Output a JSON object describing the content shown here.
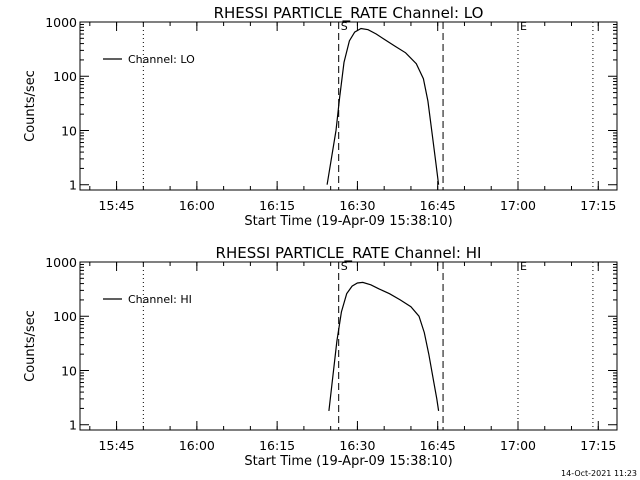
{
  "footer_timestamp": "14-Oct-2021 11:23",
  "chart_data": [
    {
      "type": "line",
      "title": "RHESSI PARTICLE_RATE Channel: LO",
      "xlabel": "Start Time (19-Apr-09 15:38:10)",
      "ylabel": "Counts/sec",
      "yscale": "log",
      "ylim": [
        0.8,
        1000
      ],
      "xlim": [
        "15:38:10",
        "17:18:30"
      ],
      "x_ticks": [
        "15:45",
        "16:00",
        "16:15",
        "16:30",
        "16:45",
        "17:00",
        "17:15"
      ],
      "y_ticks": [
        "1",
        "10",
        "100",
        "1000"
      ],
      "legend": "top-left",
      "grid": false,
      "markers": [
        {
          "label": "",
          "x": "15:50:00",
          "style": "dotted"
        },
        {
          "label": "S",
          "x": "16:26:30",
          "style": "dashed"
        },
        {
          "label": "",
          "x": "16:46:00",
          "style": "dashed"
        },
        {
          "label": "E",
          "x": "17:00:00",
          "style": "dotted"
        },
        {
          "label": "",
          "x": "17:14:00",
          "style": "dotted"
        }
      ],
      "series": [
        {
          "name": "Channel: LO",
          "x": [
            "16:24:20",
            "16:26:00",
            "16:26:40",
            "16:27:30",
            "16:28:30",
            "16:29:30",
            "16:30:40",
            "16:32:00",
            "16:33:30",
            "16:35:00",
            "16:37:00",
            "16:39:00",
            "16:41:00",
            "16:42:20",
            "16:43:10",
            "16:44:00",
            "16:44:40",
            "16:45:10"
          ],
          "values": [
            1.0,
            10,
            40,
            180,
            450,
            650,
            760,
            720,
            600,
            480,
            360,
            270,
            170,
            90,
            35,
            8,
            2.5,
            1.0
          ]
        }
      ]
    },
    {
      "type": "line",
      "title": "RHESSI PARTICLE_RATE Channel: HI",
      "xlabel": "Start Time (19-Apr-09 15:38:10)",
      "ylabel": "Counts/sec",
      "yscale": "log",
      "ylim": [
        0.8,
        1000
      ],
      "xlim": [
        "15:38:10",
        "17:18:30"
      ],
      "x_ticks": [
        "15:45",
        "16:00",
        "16:15",
        "16:30",
        "16:45",
        "17:00",
        "17:15"
      ],
      "y_ticks": [
        "1",
        "10",
        "100",
        "1000"
      ],
      "legend": "top-left",
      "grid": false,
      "markers": [
        {
          "label": "",
          "x": "15:50:00",
          "style": "dotted"
        },
        {
          "label": "S",
          "x": "16:26:30",
          "style": "dashed"
        },
        {
          "label": "",
          "x": "16:46:00",
          "style": "dashed"
        },
        {
          "label": "E",
          "x": "17:00:00",
          "style": "dotted"
        },
        {
          "label": "",
          "x": "17:14:00",
          "style": "dotted"
        }
      ],
      "series": [
        {
          "name": "Channel: HI",
          "x": [
            "16:24:40",
            "16:26:10",
            "16:27:00",
            "16:28:00",
            "16:29:00",
            "16:30:00",
            "16:31:00",
            "16:32:30",
            "16:34:00",
            "16:36:00",
            "16:38:00",
            "16:40:00",
            "16:41:30",
            "16:42:30",
            "16:43:20",
            "16:44:10",
            "16:44:50",
            "16:45:10"
          ],
          "values": [
            1.8,
            35,
            120,
            260,
            360,
            410,
            420,
            380,
            320,
            260,
            200,
            150,
            100,
            50,
            20,
            7,
            3,
            1.8
          ]
        }
      ]
    }
  ]
}
